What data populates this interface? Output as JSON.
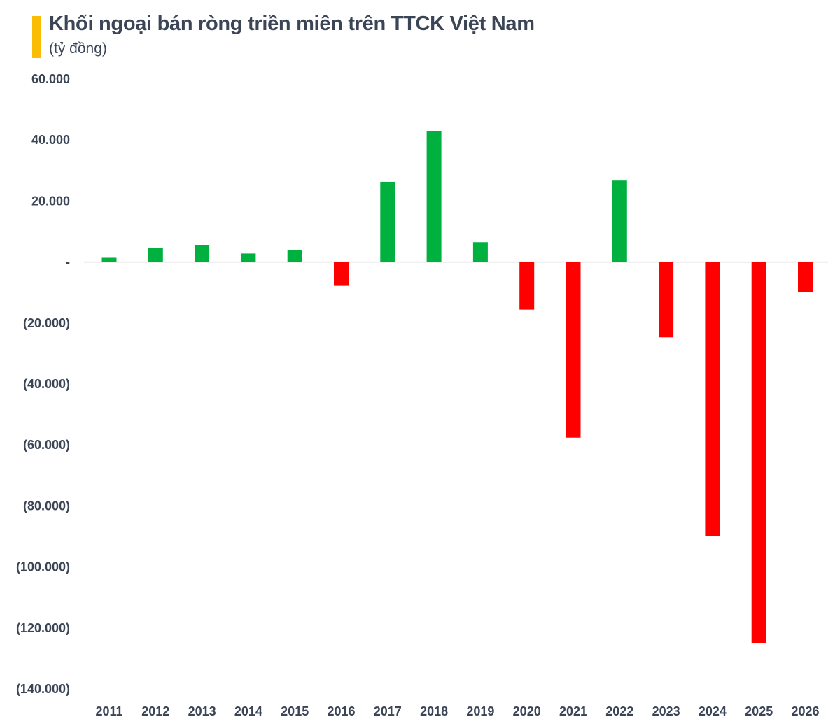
{
  "chart_data": {
    "type": "bar",
    "title": "Khối ngoại bán ròng triền miên trên TTCK Việt Nam",
    "subtitle": "(tỷ đồng)",
    "categories": [
      "2011",
      "2012",
      "2013",
      "2014",
      "2015",
      "2016",
      "2017",
      "2018",
      "2019",
      "2020",
      "2021",
      "2022",
      "2023",
      "2024",
      "2025",
      "2026"
    ],
    "values": [
      1400,
      4700,
      5500,
      2800,
      4000,
      -7800,
      26300,
      43000,
      6500,
      -15600,
      -57600,
      26700,
      -24700,
      -89900,
      -125000,
      -9900
    ],
    "ylim": [
      -140000,
      60000
    ],
    "yticks": [
      60000,
      40000,
      20000,
      0,
      -20000,
      -40000,
      -60000,
      -80000,
      -100000,
      -120000,
      -140000
    ],
    "ytick_labels": [
      "60.000",
      "40.000",
      "20.000",
      "-",
      "(20.000)",
      "(40.000)",
      "(60.000)",
      "(80.000)",
      "(100.000)",
      "(120.000)",
      "(140.000)"
    ],
    "grid": false,
    "colors": {
      "positive": "#00b140",
      "negative": "#ff0000",
      "accent": "#fbbc05",
      "text": "#3b4556"
    }
  }
}
